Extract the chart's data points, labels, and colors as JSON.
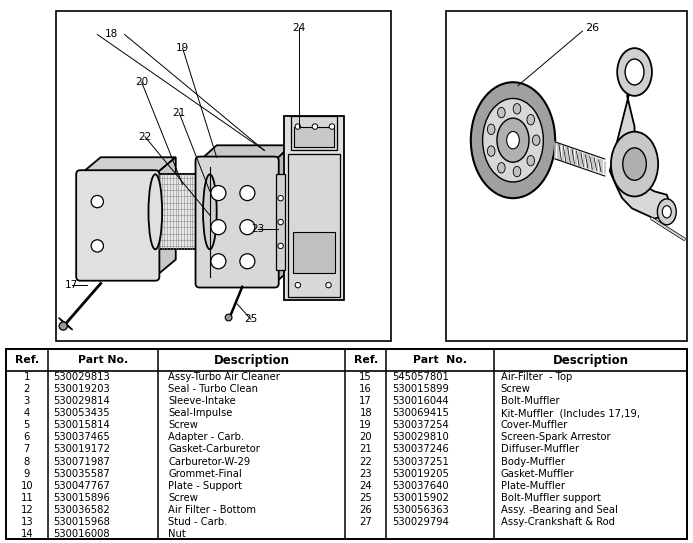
{
  "bg_color": "#ffffff",
  "left_rows": [
    [
      "1",
      "530029813",
      "Assy-Turbo Air Cleaner"
    ],
    [
      "2",
      "530019203",
      "Seal - Turbo Clean"
    ],
    [
      "3",
      "530029814",
      "Sleeve-Intake"
    ],
    [
      "4",
      "530053435",
      "Seal-Impulse"
    ],
    [
      "5",
      "530015814",
      "Screw"
    ],
    [
      "6",
      "530037465",
      "Adapter - Carb."
    ],
    [
      "7",
      "530019172",
      "Gasket-Carburetor"
    ],
    [
      "8",
      "530071987",
      "Carburetor-W-29"
    ],
    [
      "9",
      "530035587",
      "Grommet-Final"
    ],
    [
      "10",
      "530047767",
      "Plate - Support"
    ],
    [
      "11",
      "530015896",
      "Screw"
    ],
    [
      "12",
      "530036582",
      "Air Filter - Bottom"
    ],
    [
      "13",
      "530015968",
      "Stud - Carb."
    ],
    [
      "14",
      "530016008",
      "Nut"
    ]
  ],
  "right_rows": [
    [
      "15",
      "545057801",
      "Air-Filter  - Top"
    ],
    [
      "16",
      "530015899",
      "Screw"
    ],
    [
      "17",
      "530016044",
      "Bolt-Muffler"
    ],
    [
      "18",
      "530069415",
      "Kit-Muffler  (Includes 17,19,"
    ],
    [
      "19",
      "530037254",
      "Cover-Muffler"
    ],
    [
      "20",
      "530029810",
      "Screen-Spark Arrestor"
    ],
    [
      "21",
      "530037246",
      "Diffuser-Muffler"
    ],
    [
      "22",
      "530037251",
      "Body-Muffler"
    ],
    [
      "23",
      "530019205",
      "Gasket-Muffler"
    ],
    [
      "24",
      "530037640",
      "Plate-Muffler"
    ],
    [
      "25",
      "530015902",
      "Bolt-Muffler support"
    ],
    [
      "26",
      "530056363",
      "Assy. -Bearing and Seal"
    ],
    [
      "27",
      "530029794",
      "Assy-Crankshaft & Rod"
    ]
  ],
  "fig_width": 6.93,
  "fig_height": 5.43,
  "dpi": 100
}
